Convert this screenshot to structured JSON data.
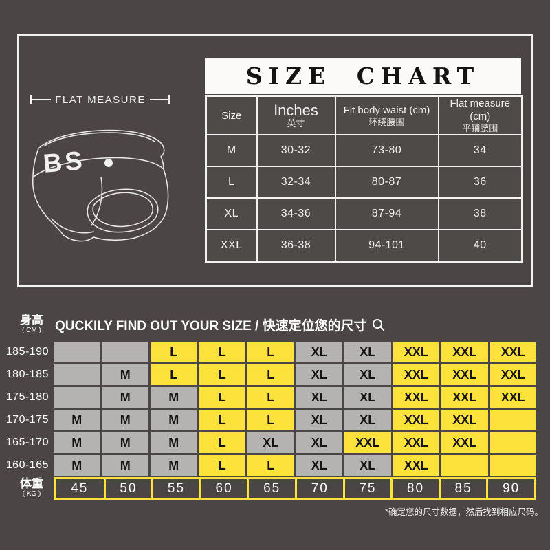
{
  "colors": {
    "background": "#4b4645",
    "panel_white": "#fbfaf9",
    "cell_gray": "#b4b3b1",
    "cell_yellow": "#fee23c",
    "text_dark": "#151515",
    "text_white": "#ffffff"
  },
  "top": {
    "flat_measure_label": "FLAT MEASURE",
    "brand_logo": "BS"
  },
  "size_chart": {
    "title": "SIZE CHART",
    "columns": [
      {
        "en": "Size",
        "zh": ""
      },
      {
        "en": "Inches",
        "zh": "英寸"
      },
      {
        "en": "Fit body waist (cm)",
        "zh": "环绕腰围"
      },
      {
        "en": "Flat measure (cm)",
        "zh": "平铺腰围"
      }
    ],
    "rows": [
      [
        "M",
        "30-32",
        "73-80",
        "34"
      ],
      [
        "L",
        "32-34",
        "80-87",
        "36"
      ],
      [
        "XL",
        "34-36",
        "87-94",
        "38"
      ],
      [
        "XXL",
        "36-38",
        "94-101",
        "40"
      ]
    ]
  },
  "finder": {
    "title": "QUCKILY FIND OUT YOUR SIZE / 快速定位您的尺寸",
    "height_label": {
      "zh": "身高",
      "unit": "( CM )"
    },
    "weight_label": {
      "zh": "体重",
      "unit": "( KG )"
    },
    "height_rows": [
      "185-190",
      "180-185",
      "175-180",
      "170-175",
      "165-170",
      "160-165"
    ],
    "weights": [
      "45",
      "50",
      "55",
      "60",
      "65",
      "70",
      "75",
      "80",
      "85",
      "90"
    ],
    "grid_values": [
      [
        "",
        "",
        "L",
        "L",
        "L",
        "XL",
        "XL",
        "XXL",
        "XXL",
        "XXL"
      ],
      [
        "",
        "M",
        "L",
        "L",
        "L",
        "XL",
        "XL",
        "XXL",
        "XXL",
        "XXL"
      ],
      [
        "",
        "M",
        "M",
        "L",
        "L",
        "XL",
        "XL",
        "XXL",
        "XXL",
        "XXL"
      ],
      [
        "M",
        "M",
        "M",
        "L",
        "L",
        "XL",
        "XL",
        "XXL",
        "XXL",
        ""
      ],
      [
        "M",
        "M",
        "M",
        "L",
        "XL",
        "XL",
        "XXL",
        "XXL",
        "XXL",
        ""
      ],
      [
        "M",
        "M",
        "M",
        "L",
        "L",
        "XL",
        "XL",
        "XXL",
        "",
        ""
      ]
    ],
    "grid_colors": [
      [
        "g",
        "g",
        "y",
        "y",
        "y",
        "g",
        "g",
        "y",
        "y",
        "y"
      ],
      [
        "g",
        "g",
        "y",
        "y",
        "y",
        "g",
        "g",
        "y",
        "y",
        "y"
      ],
      [
        "g",
        "g",
        "g",
        "y",
        "y",
        "g",
        "g",
        "y",
        "y",
        "y"
      ],
      [
        "g",
        "g",
        "g",
        "y",
        "y",
        "g",
        "g",
        "y",
        "y",
        "y"
      ],
      [
        "g",
        "g",
        "g",
        "y",
        "g",
        "g",
        "y",
        "y",
        "y",
        "y"
      ],
      [
        "g",
        "g",
        "g",
        "y",
        "y",
        "g",
        "g",
        "y",
        "y",
        "y"
      ]
    ],
    "footnote": "*确定您的尺寸数据，然后找到相应尺码。"
  },
  "chart_data": [
    {
      "type": "table",
      "title": "SIZE CHART",
      "columns": [
        "Size",
        "Inches 英寸",
        "Fit body waist (cm) 环绕腰围",
        "Flat measure (cm) 平铺腰围"
      ],
      "rows": [
        [
          "M",
          "30-32",
          "73-80",
          "34"
        ],
        [
          "L",
          "32-34",
          "80-87",
          "36"
        ],
        [
          "XL",
          "34-36",
          "87-94",
          "38"
        ],
        [
          "XXL",
          "36-38",
          "94-101",
          "40"
        ]
      ]
    },
    {
      "type": "table",
      "title": "QUCKILY FIND OUT YOUR SIZE / 快速定位您的尺寸",
      "y_axis_label": "身高 ( CM )",
      "x_axis_label": "体重 ( KG )",
      "row_labels": [
        "185-190",
        "180-185",
        "175-180",
        "170-175",
        "165-170",
        "160-165"
      ],
      "columns": [
        "45",
        "50",
        "55",
        "60",
        "65",
        "70",
        "75",
        "80",
        "85",
        "90"
      ],
      "rows": [
        [
          "",
          "",
          "L",
          "L",
          "L",
          "XL",
          "XL",
          "XXL",
          "XXL",
          "XXL"
        ],
        [
          "",
          "M",
          "L",
          "L",
          "L",
          "XL",
          "XL",
          "XXL",
          "XXL",
          "XXL"
        ],
        [
          "",
          "M",
          "M",
          "L",
          "L",
          "XL",
          "XL",
          "XXL",
          "XXL",
          "XXL"
        ],
        [
          "M",
          "M",
          "M",
          "L",
          "L",
          "XL",
          "XL",
          "XXL",
          "XXL",
          ""
        ],
        [
          "M",
          "M",
          "M",
          "L",
          "XL",
          "XL",
          "XXL",
          "XXL",
          "XXL",
          ""
        ],
        [
          "M",
          "M",
          "M",
          "L",
          "L",
          "XL",
          "XL",
          "XXL",
          "",
          ""
        ]
      ],
      "note": "*确定您的尺寸数据，然后找到相应尺码。"
    }
  ]
}
